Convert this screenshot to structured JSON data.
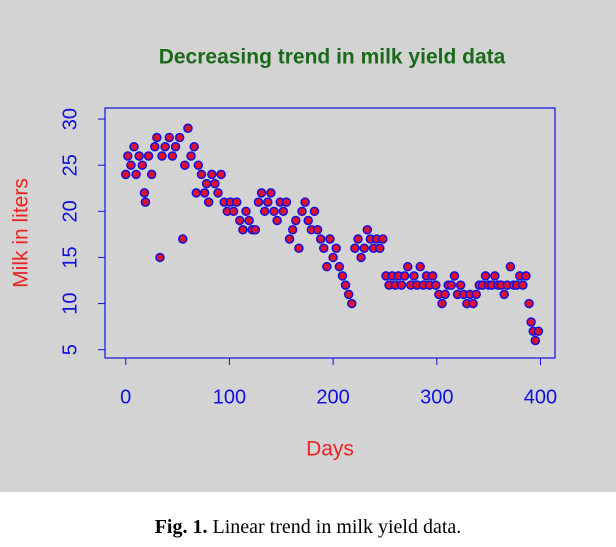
{
  "chart_data": {
    "type": "scatter",
    "title": "Decreasing trend in milk yield data",
    "x_label": "Days",
    "y_label": "Milk in liters",
    "x": [
      0,
      2,
      5,
      8,
      10,
      13,
      16,
      18,
      19,
      22,
      25,
      28,
      30,
      33,
      35,
      38,
      42,
      45,
      48,
      52,
      55,
      57,
      60,
      63,
      66,
      68,
      70,
      73,
      76,
      78,
      80,
      83,
      86,
      89,
      92,
      95,
      98,
      101,
      104,
      107,
      110,
      113,
      116,
      119,
      122,
      125,
      128,
      131,
      134,
      137,
      140,
      143,
      146,
      149,
      152,
      155,
      158,
      161,
      164,
      167,
      170,
      173,
      176,
      179,
      182,
      185,
      188,
      191,
      194,
      197,
      200,
      203,
      206,
      209,
      212,
      215,
      218,
      221,
      224,
      227,
      230,
      233,
      236,
      239,
      242,
      245,
      248,
      251,
      254,
      257,
      260,
      263,
      266,
      269,
      272,
      275,
      278,
      281,
      284,
      287,
      290,
      293,
      296,
      299,
      302,
      305,
      308,
      311,
      314,
      317,
      320,
      323,
      326,
      329,
      332,
      335,
      338,
      341,
      344,
      347,
      350,
      353,
      356,
      359,
      362,
      365,
      368,
      371,
      374,
      377,
      380,
      383,
      386,
      389,
      391,
      393,
      395,
      398
    ],
    "values": [
      24,
      26,
      25,
      27,
      24,
      26,
      25,
      22,
      21,
      26,
      24,
      27,
      28,
      15,
      26,
      27,
      28,
      26,
      27,
      28,
      17,
      25,
      29,
      26,
      27,
      22,
      25,
      24,
      22,
      23,
      21,
      24,
      23,
      22,
      24,
      21,
      20,
      21,
      20,
      21,
      19,
      18,
      20,
      19,
      18,
      18,
      21,
      22,
      20,
      21,
      22,
      20,
      19,
      21,
      20,
      21,
      17,
      18,
      19,
      16,
      20,
      21,
      19,
      18,
      20,
      18,
      17,
      16,
      14,
      17,
      15,
      16,
      14,
      13,
      12,
      11,
      10,
      16,
      17,
      15,
      16,
      18,
      17,
      16,
      17,
      16,
      17,
      13,
      12,
      13,
      12,
      13,
      12,
      13,
      14,
      12,
      13,
      12,
      14,
      12,
      13,
      12,
      13,
      12,
      11,
      10,
      11,
      12,
      12,
      13,
      11,
      12,
      11,
      10,
      11,
      10,
      11,
      12,
      12,
      13,
      12,
      12,
      13,
      12,
      12,
      11,
      12,
      14,
      12,
      12,
      13,
      12,
      13,
      10,
      8,
      7,
      6,
      7
    ],
    "color": "#e0102c",
    "edge_color": "#1010e0",
    "xlim": [
      -20,
      414
    ],
    "ylim": [
      4.1,
      31.2
    ],
    "xticks": [
      0,
      100,
      200,
      300,
      400
    ],
    "yticks": [
      5,
      10,
      15,
      20,
      25,
      30
    ]
  },
  "caption": {
    "label": "Fig. 1.",
    "text": "Linear trend in milk yield data."
  }
}
